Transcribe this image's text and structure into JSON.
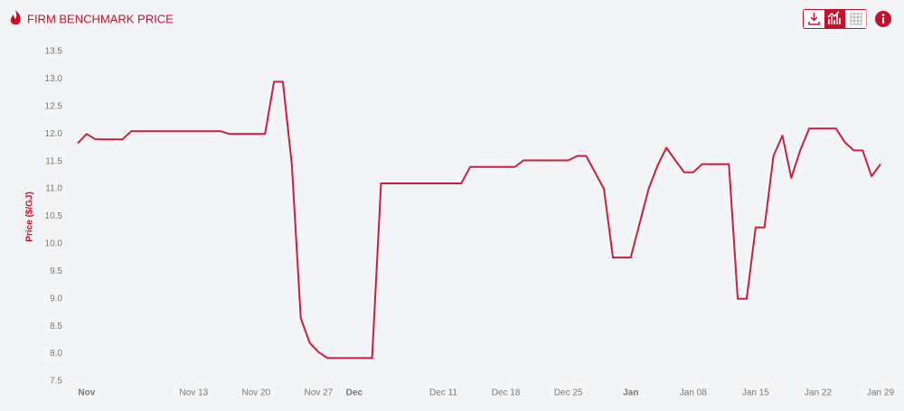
{
  "chart_data": {
    "type": "line",
    "title": "FIRM BENCHMARK PRICE",
    "y_label": "Price ($/GJ)",
    "color": "#c8213e",
    "x": [
      "Oct 31",
      "Nov 1",
      "Nov 2",
      "Nov 5",
      "Nov 6",
      "Nov 16",
      "Nov 17",
      "Nov 21",
      "Nov 22",
      "Nov 23",
      "Nov 24",
      "Nov 25",
      "Nov 26",
      "Nov 27",
      "Nov 28",
      "Dec 3",
      "Dec 4",
      "Dec 13",
      "Dec 14",
      "Dec 19",
      "Dec 20",
      "Dec 25",
      "Dec 26",
      "Dec 27",
      "Dec 29",
      "Dec 30",
      "Jan 01",
      "Jan 03",
      "Jan 04",
      "Jan 05",
      "Jan 06",
      "Jan 07",
      "Jan 08",
      "Jan 09",
      "Jan 12",
      "Jan 13",
      "Jan 14",
      "Jan 15",
      "Jan 16",
      "Jan 17",
      "Jan 18",
      "Jan 19",
      "Jan 20",
      "Jan 21",
      "Jan 24",
      "Jan 25",
      "Jan 26",
      "Jan 27",
      "Jan 28",
      "Jan 29"
    ],
    "values": [
      11.83,
      12.0,
      11.9,
      11.9,
      12.05,
      12.05,
      12.0,
      12.0,
      12.95,
      12.95,
      11.45,
      8.65,
      8.2,
      8.03,
      7.92,
      7.92,
      11.1,
      11.1,
      11.4,
      11.4,
      11.52,
      11.52,
      11.6,
      11.6,
      11.0,
      9.75,
      9.75,
      11.0,
      11.42,
      11.75,
      11.52,
      11.3,
      11.3,
      11.45,
      11.45,
      9.0,
      9.0,
      10.3,
      10.3,
      11.6,
      11.97,
      11.2,
      11.7,
      12.1,
      12.1,
      11.85,
      11.7,
      11.7,
      11.23,
      11.45
    ],
    "xlim": [
      "Oct 31",
      "Jan 29"
    ],
    "xticks": [
      {
        "value": "Nov 1",
        "label": "Nov"
      },
      "Nov 13",
      "Nov 20",
      "Nov 27",
      {
        "value": "Dec 1",
        "label": "Dec"
      },
      "Dec 11",
      "Dec 18",
      "Dec 25",
      {
        "value": "Jan 1",
        "label": "Jan"
      },
      "Jan 08",
      "Jan 15",
      "Jan 22",
      "Jan 29"
    ],
    "ylim": [
      7.5,
      13.5
    ],
    "yticks": [
      7.5,
      {
        "value": 8,
        "label": "8.0"
      },
      8.5,
      {
        "value": 9,
        "label": "9.0"
      },
      9.5,
      {
        "value": 10,
        "label": "10.0"
      },
      10.5,
      {
        "value": 11,
        "label": "11.0"
      },
      11.5,
      {
        "value": 12,
        "label": "12.0"
      },
      12.5,
      {
        "value": 13,
        "label": "13.0"
      },
      13.5
    ],
    "grid": false
  }
}
